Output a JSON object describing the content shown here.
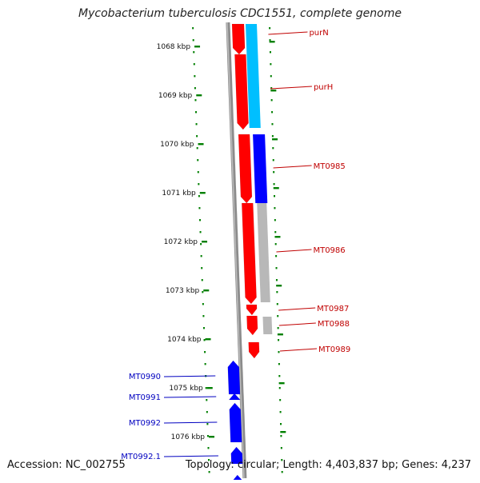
{
  "title": "Mycobacterium tuberculosis CDC1551, complete genome",
  "accession_label": "Accession: NC_002755",
  "summary_label": "Topology: circular; Length: 4,403,837 bp; Genes: 4,237",
  "colors": {
    "forward_gene": "#ff0000",
    "reverse_gene": "#0000ff",
    "cds_light": "#00bfff",
    "cds_dark": "#0000ff",
    "cds_gray": "#b8b8b8",
    "backbone": "#8c8c8c",
    "tick": "#007f00",
    "label_forward": "#c00000",
    "label_reverse": "#0000c0"
  },
  "ruler": [
    {
      "label": "1068 kbp"
    },
    {
      "label": "1069 kbp"
    },
    {
      "label": "1070 kbp"
    },
    {
      "label": "1071 kbp"
    },
    {
      "label": "1072 kbp"
    },
    {
      "label": "1073 kbp"
    },
    {
      "label": "1074 kbp"
    },
    {
      "label": "1075 kbp"
    },
    {
      "label": "1076 kbp"
    }
  ],
  "features": [
    {
      "name": "purN",
      "strand": "forward"
    },
    {
      "name": "purH",
      "strand": "forward"
    },
    {
      "name": "MT0985",
      "strand": "forward"
    },
    {
      "name": "MT0986",
      "strand": "forward"
    },
    {
      "name": "MT0987",
      "strand": "forward"
    },
    {
      "name": "MT0988",
      "strand": "forward"
    },
    {
      "name": "MT0989",
      "strand": "forward"
    },
    {
      "name": "MT0990",
      "strand": "reverse"
    },
    {
      "name": "MT0991",
      "strand": "reverse"
    },
    {
      "name": "MT0992",
      "strand": "reverse"
    },
    {
      "name": "MT0992.1",
      "strand": "reverse"
    }
  ]
}
